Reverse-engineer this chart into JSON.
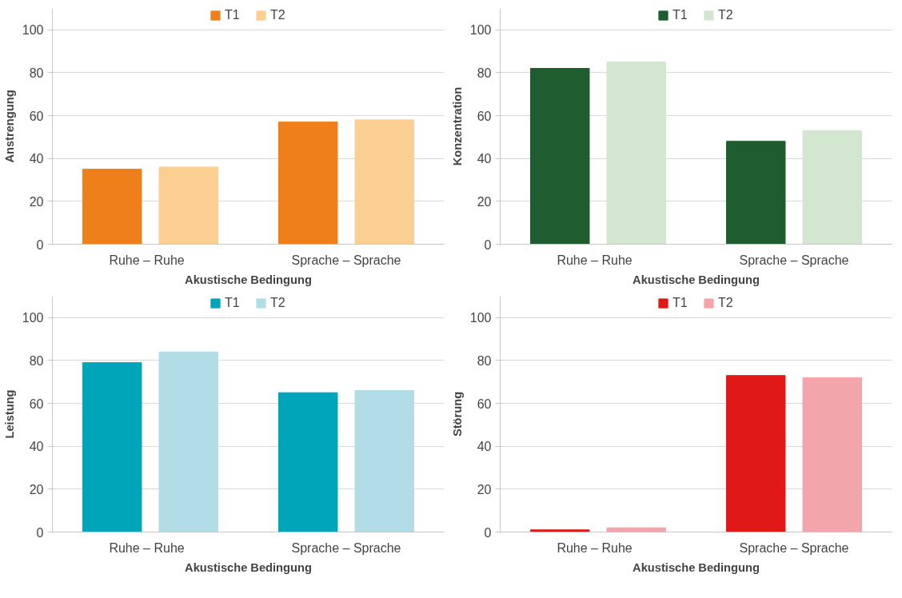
{
  "chart_data": [
    {
      "type": "bar",
      "ylabel": "Anstrengung",
      "xlabel": "Akustische Bedingung",
      "categories": [
        "Ruhe  –  Ruhe",
        "Sprache – Sprache"
      ],
      "ylim": [
        0,
        110
      ],
      "yticks": [
        0,
        20,
        40,
        60,
        80,
        100
      ],
      "grid": "y",
      "legend": "top",
      "series": [
        {
          "name": "T1",
          "color": "#ee7f1b",
          "values": [
            35,
            57
          ]
        },
        {
          "name": "T2",
          "color": "#fbcf92",
          "values": [
            36,
            58
          ]
        }
      ]
    },
    {
      "type": "bar",
      "ylabel": "Konzentration",
      "xlabel": "Akustische Bedingung",
      "categories": [
        "Ruhe  –  Ruhe",
        "Sprache – Sprache"
      ],
      "ylim": [
        0,
        110
      ],
      "yticks": [
        0,
        20,
        40,
        60,
        80,
        100
      ],
      "grid": "y",
      "legend": "top",
      "series": [
        {
          "name": "T1",
          "color": "#1f5c2e",
          "values": [
            82,
            48
          ]
        },
        {
          "name": "T2",
          "color": "#d2e6d0",
          "values": [
            85,
            53
          ]
        }
      ]
    },
    {
      "type": "bar",
      "ylabel": "Leistung",
      "xlabel": "Akustische Bedingung",
      "categories": [
        "Ruhe  –  Ruhe",
        "Sprache – Sprache"
      ],
      "ylim": [
        0,
        110
      ],
      "yticks": [
        0,
        20,
        40,
        60,
        80,
        100
      ],
      "grid": "y",
      "legend": "top",
      "series": [
        {
          "name": "T1",
          "color": "#00a5ba",
          "values": [
            79,
            65
          ]
        },
        {
          "name": "T2",
          "color": "#b2dde7",
          "values": [
            84,
            66
          ]
        }
      ]
    },
    {
      "type": "bar",
      "ylabel": "Störung",
      "xlabel": "Akustische Bedingung",
      "categories": [
        "Ruhe  –  Ruhe",
        "Sprache – Sprache"
      ],
      "ylim": [
        0,
        110
      ],
      "yticks": [
        0,
        20,
        40,
        60,
        80,
        100
      ],
      "grid": "y",
      "legend": "top",
      "series": [
        {
          "name": "T1",
          "color": "#e01818",
          "values": [
            1,
            73
          ]
        },
        {
          "name": "T2",
          "color": "#f2a5ab",
          "values": [
            2,
            72
          ]
        }
      ]
    }
  ]
}
